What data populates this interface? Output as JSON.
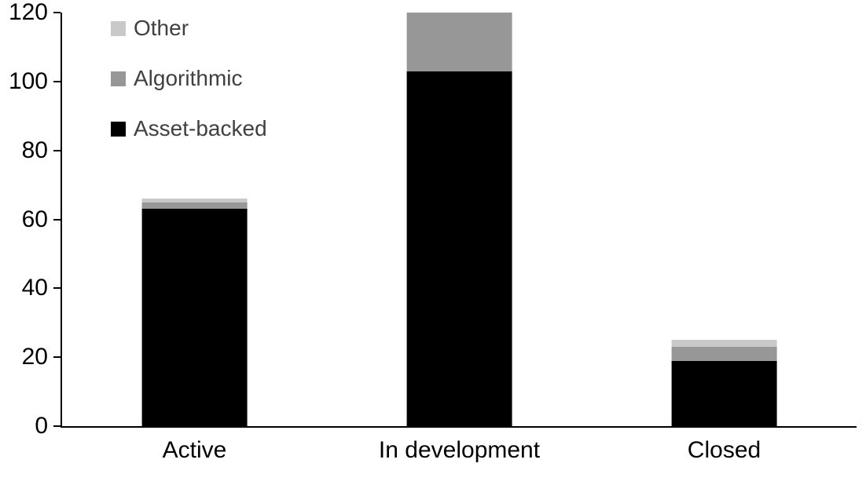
{
  "chart_data": {
    "type": "bar",
    "stacked": true,
    "title": "",
    "xlabel": "",
    "ylabel": "",
    "categories": [
      "Active",
      "In development",
      "Closed"
    ],
    "series": [
      {
        "name": "Asset-backed",
        "color": "#000000",
        "values": [
          63,
          103,
          19
        ]
      },
      {
        "name": "Algorithmic",
        "color": "#979797",
        "values": [
          2,
          17,
          4
        ]
      },
      {
        "name": "Other",
        "color": "#c9c9c9",
        "values": [
          1,
          0,
          2
        ]
      }
    ],
    "ylim": [
      0,
      120
    ],
    "ytick_step": 20,
    "yticks": [
      0,
      20,
      40,
      60,
      80,
      100,
      120
    ],
    "grid": false,
    "legend_position": "top-left-inside",
    "legend_order": [
      "Other",
      "Algorithmic",
      "Asset-backed"
    ]
  }
}
